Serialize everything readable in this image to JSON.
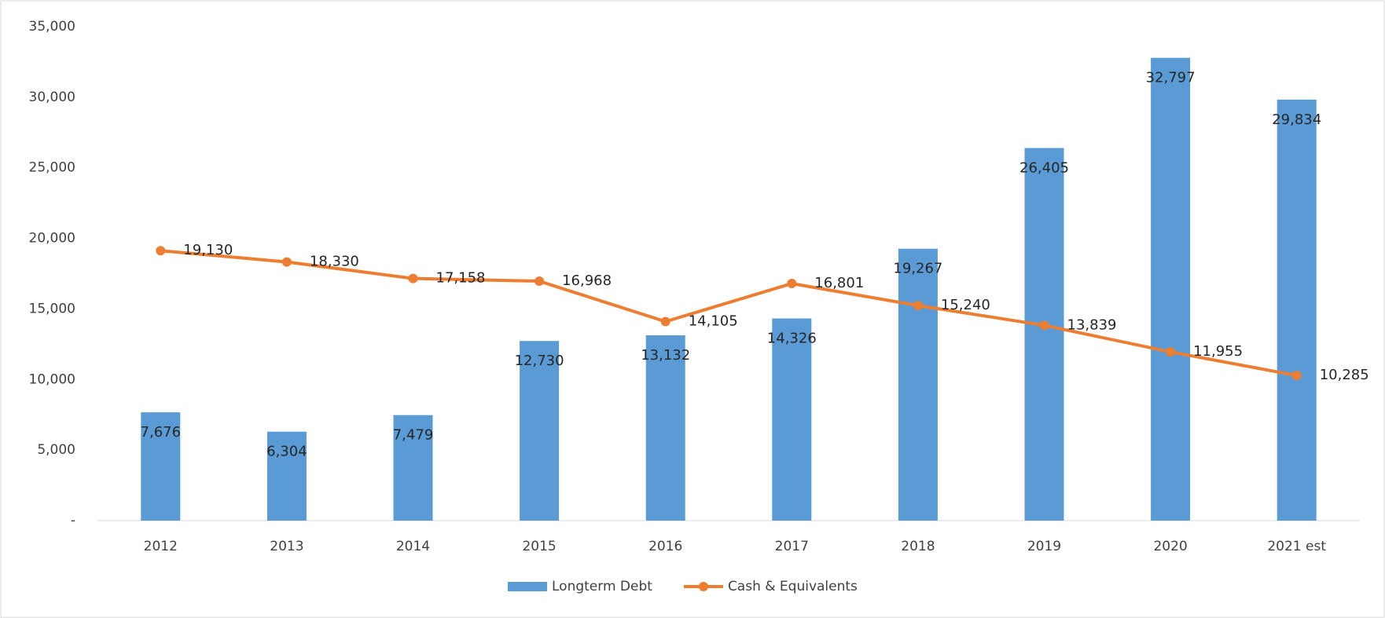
{
  "chart_data": {
    "type": "bar",
    "categories": [
      "2012",
      "2013",
      "2014",
      "2015",
      "2016",
      "2017",
      "2018",
      "2019",
      "2020",
      "2021 est"
    ],
    "series": [
      {
        "name": "Longterm Debt",
        "type": "bar",
        "color": "#5b9bd5",
        "values": [
          7676,
          6304,
          7479,
          12730,
          13132,
          14326,
          19267,
          26405,
          32797,
          29834
        ],
        "value_labels": [
          "7,676",
          "6,304",
          "7,479",
          "12,730",
          "13,132",
          "14,326",
          "19,267",
          "26,405",
          "32,797",
          "29,834"
        ]
      },
      {
        "name": "Cash & Equivalents",
        "type": "line",
        "color": "#ed7d31",
        "values": [
          19130,
          18330,
          17158,
          16968,
          14105,
          16801,
          15240,
          13839,
          11955,
          10285
        ],
        "value_labels": [
          "19,130",
          "18,330",
          "17,158",
          "16,968",
          "14,105",
          "16,801",
          "15,240",
          "13,839",
          "11,955",
          "10,285"
        ]
      }
    ],
    "ylim": [
      0,
      35000
    ],
    "yticks": [
      {
        "value": 0,
        "label": "-"
      },
      {
        "value": 5000,
        "label": "5,000"
      },
      {
        "value": 10000,
        "label": "10,000"
      },
      {
        "value": 15000,
        "label": "15,000"
      },
      {
        "value": 20000,
        "label": "20,000"
      },
      {
        "value": 25000,
        "label": "25,000"
      },
      {
        "value": 30000,
        "label": "30,000"
      },
      {
        "value": 35000,
        "label": "35,000"
      }
    ],
    "grid": false,
    "legend": "bottom"
  }
}
